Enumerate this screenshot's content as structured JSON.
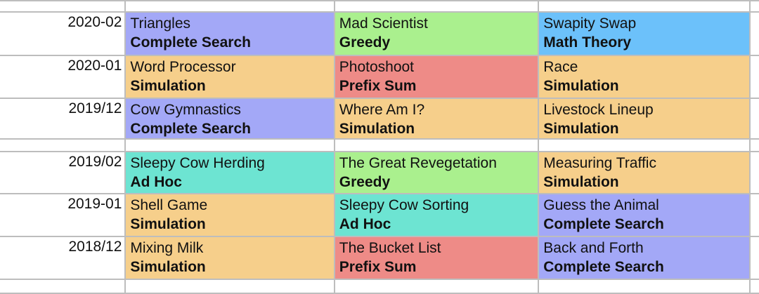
{
  "colors": {
    "Complete Search": "#a3a8f7",
    "Greedy": "#aaf08e",
    "Math Theory": "#6cc1fa",
    "Simulation": "#f6cf8b",
    "Prefix Sum": "#ee8b87",
    "Ad Hoc": "#6de4d2"
  },
  "rows": [
    {
      "date": "",
      "cells": []
    },
    {
      "date": "2020-02",
      "cells": [
        {
          "name": "Triangles",
          "category": "Complete Search"
        },
        {
          "name": "Mad Scientist",
          "category": "Greedy"
        },
        {
          "name": "Swapity Swap",
          "category": "Math Theory"
        }
      ]
    },
    {
      "date": "2020-01",
      "cells": [
        {
          "name": "Word Processor",
          "category": "Simulation"
        },
        {
          "name": "Photoshoot",
          "category": "Prefix Sum"
        },
        {
          "name": "Race",
          "category": "Simulation"
        }
      ]
    },
    {
      "date": "2019/12",
      "cells": [
        {
          "name": "Cow Gymnastics",
          "category": "Complete Search"
        },
        {
          "name": "Where Am I?",
          "category": "Simulation"
        },
        {
          "name": "Livestock Lineup",
          "category": "Simulation"
        }
      ]
    },
    {
      "date": "",
      "cells": []
    },
    {
      "date": "2019/02",
      "cells": [
        {
          "name": "Sleepy Cow Herding",
          "category": "Ad Hoc"
        },
        {
          "name": "The Great Revegetation",
          "category": "Greedy"
        },
        {
          "name": "Measuring Traffic",
          "category": "Simulation"
        }
      ]
    },
    {
      "date": "2019-01",
      "cells": [
        {
          "name": "Shell Game",
          "category": "Simulation"
        },
        {
          "name": "Sleepy Cow Sorting",
          "category": "Ad Hoc"
        },
        {
          "name": "Guess the Animal",
          "category": "Complete Search"
        }
      ]
    },
    {
      "date": "2018/12",
      "cells": [
        {
          "name": "Mixing Milk",
          "category": "Simulation"
        },
        {
          "name": "The Bucket List",
          "category": "Prefix Sum"
        },
        {
          "name": "Back and Forth",
          "category": "Complete Search"
        }
      ]
    },
    {
      "date": "",
      "cells": []
    }
  ]
}
